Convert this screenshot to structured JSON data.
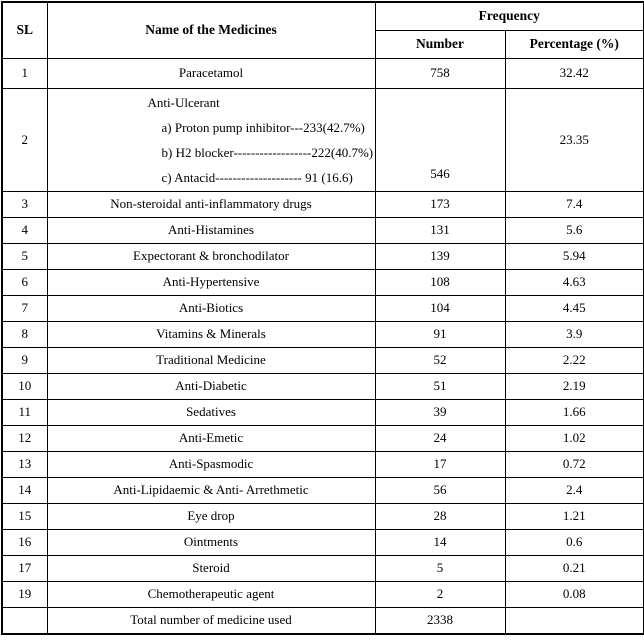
{
  "table": {
    "headers": {
      "sl": "SL",
      "name": "Name of the Medicines",
      "frequency": "Frequency",
      "number": "Number",
      "percentage": "Percentage (%)"
    },
    "rows": [
      {
        "sl": "1",
        "name": "Paracetamol",
        "number": "758",
        "percentage": "32.42"
      },
      {
        "sl": "2",
        "name_lines": [
          "Anti-Ulcerant",
          "a) Proton pump inhibitor---233(42.7%)",
          "b) H2 blocker------------------222(40.7%)",
          "c) Antacid-------------------- 91 (16.6)"
        ],
        "number": "546",
        "percentage": "23.35"
      },
      {
        "sl": "3",
        "name": "Non-steroidal anti-inflammatory drugs",
        "number": "173",
        "percentage": "7.4"
      },
      {
        "sl": "4",
        "name": "Anti-Histamines",
        "number": "131",
        "percentage": "5.6"
      },
      {
        "sl": "5",
        "name": "Expectorant & bronchodilator",
        "number": "139",
        "percentage": "5.94"
      },
      {
        "sl": "6",
        "name": "Anti-Hypertensive",
        "number": "108",
        "percentage": "4.63"
      },
      {
        "sl": "7",
        "name": "Anti-Biotics",
        "number": "104",
        "percentage": "4.45"
      },
      {
        "sl": "8",
        "name": "Vitamins & Minerals",
        "number": "91",
        "percentage": "3.9"
      },
      {
        "sl": "9",
        "name": "Traditional Medicine",
        "number": "52",
        "percentage": "2.22"
      },
      {
        "sl": "10",
        "name": "Anti-Diabetic",
        "number": "51",
        "percentage": "2.19"
      },
      {
        "sl": "11",
        "name": "Sedatives",
        "number": "39",
        "percentage": "1.66"
      },
      {
        "sl": "12",
        "name": "Anti-Emetic",
        "number": "24",
        "percentage": "1.02"
      },
      {
        "sl": "13",
        "name": "Anti-Spasmodic",
        "number": "17",
        "percentage": "0.72"
      },
      {
        "sl": "14",
        "name": "Anti-Lipidaemic & Anti- Arrethmetic",
        "number": "56",
        "percentage": "2.4"
      },
      {
        "sl": "15",
        "name": "Eye drop",
        "number": "28",
        "percentage": "1.21"
      },
      {
        "sl": "16",
        "name": "Ointments",
        "number": "14",
        "percentage": "0.6"
      },
      {
        "sl": "17",
        "name": "Steroid",
        "number": "5",
        "percentage": "0.21"
      },
      {
        "sl": "19",
        "name": "Chemotherapeutic agent",
        "number": "2",
        "percentage": "0.08"
      }
    ],
    "footer": {
      "sl": "",
      "name": "Total number of medicine used",
      "number": "2338",
      "percentage": ""
    },
    "colors": {
      "text": "#000000",
      "border": "#000000",
      "background": "#ffffff"
    }
  }
}
